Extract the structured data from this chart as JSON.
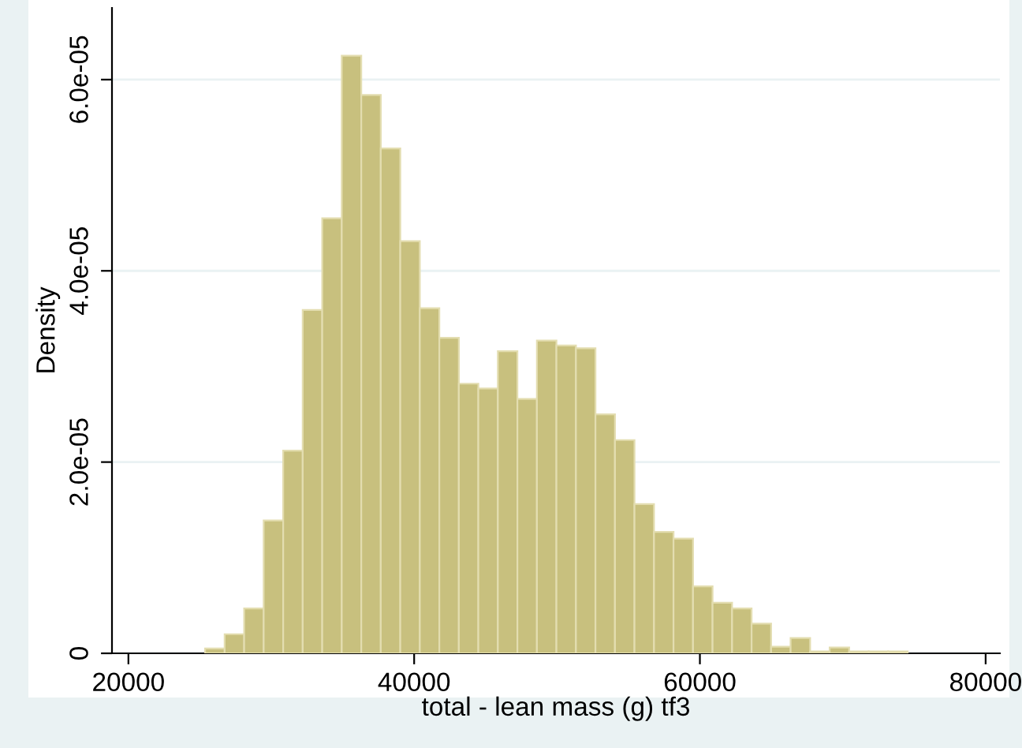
{
  "chart_data": {
    "type": "histogram",
    "xlabel": "total - lean mass (g) tf3",
    "ylabel": "Density",
    "bins": [
      25370,
      26736,
      28102,
      29468,
      30834,
      32200,
      33566,
      34932,
      36298,
      37664,
      39030,
      40396,
      41762,
      43128,
      44494,
      45860,
      47226,
      48592,
      49958,
      51324,
      52690,
      54056,
      55422,
      56788,
      58154,
      59520,
      60886,
      62252,
      63618,
      64984,
      66350,
      67716,
      69082,
      70448,
      71814,
      73180,
      74546
    ],
    "values": [
      5e-07,
      2e-06,
      4.7e-06,
      1.39e-05,
      2.12e-05,
      3.59e-05,
      4.55e-05,
      6.25e-05,
      5.84e-05,
      5.28e-05,
      4.31e-05,
      3.61e-05,
      3.3e-05,
      2.82e-05,
      2.77e-05,
      3.16e-05,
      2.66e-05,
      3.27e-05,
      3.22e-05,
      3.19e-05,
      2.5e-05,
      2.23e-05,
      1.56e-05,
      1.27e-05,
      1.2e-05,
      7e-06,
      5.3e-06,
      4.7e-06,
      3.1e-06,
      7e-07,
      1.6e-06,
      2e-07,
      6e-07,
      2e-07,
      2e-07,
      2e-07
    ],
    "color": "#c8c07e",
    "xlim": [
      18850,
      81000
    ],
    "xticks": [
      20000,
      40000,
      60000,
      80000
    ],
    "ylim": [
      0,
      6.75e-05
    ],
    "yticks": [
      0,
      {
        "value": 2e-05,
        "label": "2.0e-05"
      },
      {
        "value": 4e-05,
        "label": "4.0e-05"
      },
      {
        "value": 6e-05,
        "label": "6.0e-05"
      }
    ],
    "grid": "y"
  }
}
